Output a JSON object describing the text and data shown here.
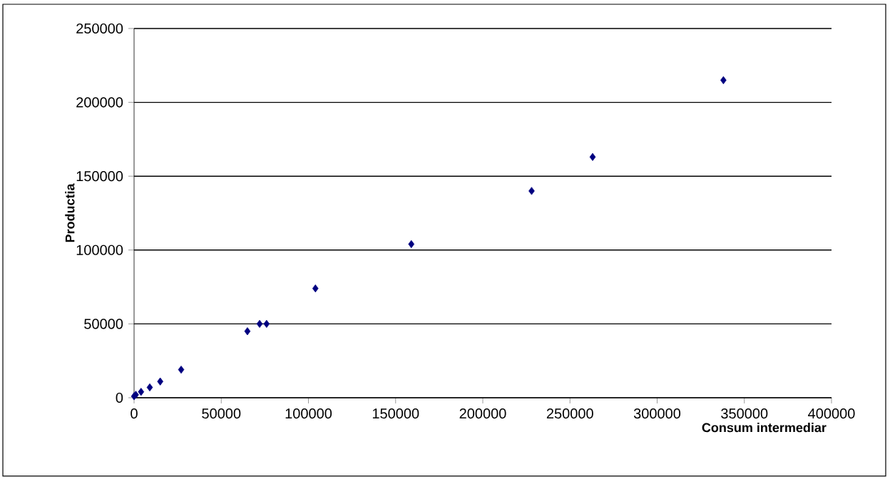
{
  "chart_data": {
    "type": "scatter",
    "xlabel": "Consum intermediar",
    "ylabel": "Productia",
    "x": [
      0,
      1000,
      4000,
      9000,
      15000,
      27000,
      65000,
      72000,
      76000,
      104000,
      159000,
      228000,
      263000,
      338000
    ],
    "values": [
      1000,
      2000,
      4000,
      7000,
      11000,
      19000,
      45000,
      50000,
      50000,
      74000,
      104000,
      140000,
      163000,
      215000
    ],
    "color": "#000080",
    "marker": "diamond",
    "xlim": [
      0,
      400000
    ],
    "xticks": [
      0,
      50000,
      100000,
      150000,
      200000,
      250000,
      300000,
      350000,
      400000
    ],
    "ylim": [
      0,
      250000
    ],
    "yticks": [
      0,
      50000,
      100000,
      150000,
      200000,
      250000
    ],
    "grid": "y"
  }
}
